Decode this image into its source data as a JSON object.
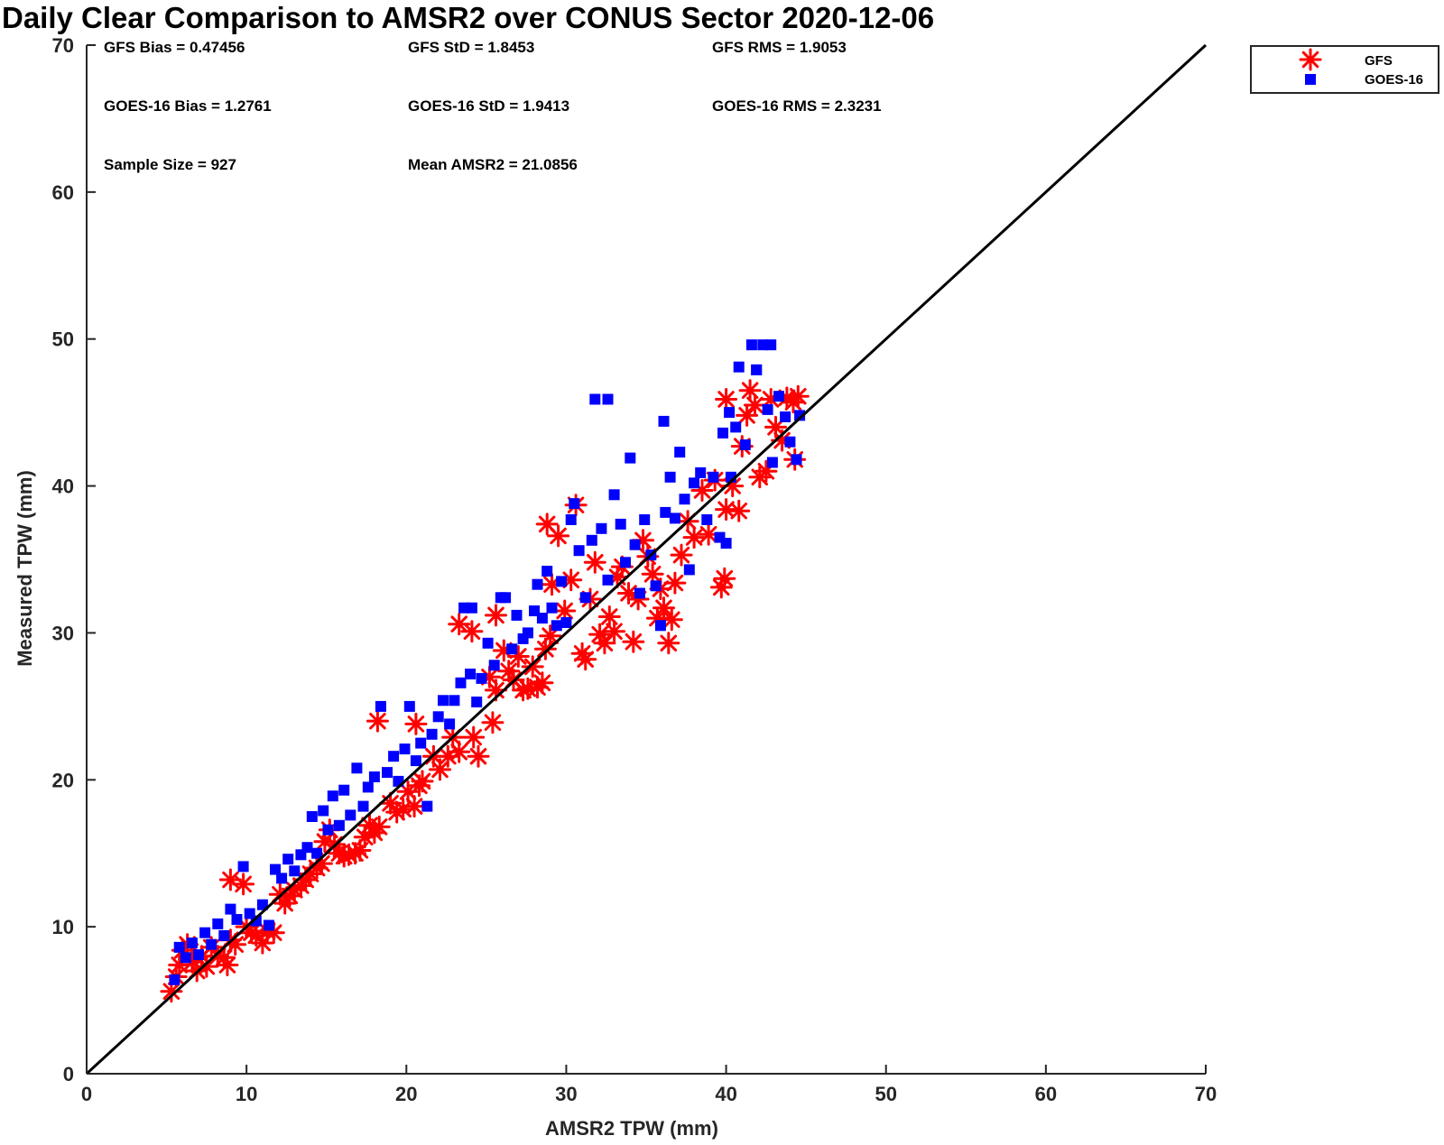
{
  "chart_data": {
    "type": "scatter",
    "title": "Daily Clear Comparison to AMSR2 over CONUS Sector 2020-12-06",
    "xlabel": "AMSR2 TPW (mm)",
    "ylabel": "Measured TPW (mm)",
    "xlim": [
      0,
      70
    ],
    "ylim": [
      0,
      70
    ],
    "xticks": [
      "0",
      "10",
      "20",
      "30",
      "40",
      "50",
      "60",
      "70"
    ],
    "yticks": [
      "0",
      "10",
      "20",
      "30",
      "40",
      "50",
      "60",
      "70"
    ],
    "grid": false,
    "legend_position": "outside-top-right",
    "reference_line": {
      "type": "one-to-one",
      "color": "#000000"
    },
    "annotations": [
      {
        "row": 0,
        "col": 0,
        "text": "GFS Bias = 0.47456"
      },
      {
        "row": 0,
        "col": 1,
        "text": "GFS StD = 1.8453"
      },
      {
        "row": 0,
        "col": 2,
        "text": "GFS RMS = 1.9053"
      },
      {
        "row": 1,
        "col": 0,
        "text": "GOES-16 Bias = 1.2761"
      },
      {
        "row": 1,
        "col": 1,
        "text": "GOES-16 StD = 1.9413"
      },
      {
        "row": 1,
        "col": 2,
        "text": "GOES-16 RMS = 2.3231"
      },
      {
        "row": 2,
        "col": 0,
        "text": "Sample Size = 927"
      },
      {
        "row": 2,
        "col": 1,
        "text": "Mean AMSR2 = 21.0856"
      }
    ],
    "series": [
      {
        "name": "GFS",
        "marker": "asterisk",
        "color": "#ff0000",
        "points": [
          [
            5.3,
            5.6
          ],
          [
            5.6,
            6.6
          ],
          [
            5.8,
            7.4
          ],
          [
            6.0,
            8.4
          ],
          [
            6.3,
            8.8
          ],
          [
            6.6,
            7.6
          ],
          [
            6.9,
            7.0
          ],
          [
            7.2,
            8.0
          ],
          [
            7.5,
            7.3
          ],
          [
            7.8,
            8.6
          ],
          [
            8.2,
            8.0
          ],
          [
            8.6,
            7.9
          ],
          [
            8.8,
            7.4
          ],
          [
            9.0,
            9.1
          ],
          [
            9.3,
            8.8
          ],
          [
            9.0,
            13.2
          ],
          [
            9.8,
            12.9
          ],
          [
            10.0,
            10.0
          ],
          [
            10.3,
            9.6
          ],
          [
            10.6,
            9.4
          ],
          [
            11.0,
            8.9
          ],
          [
            11.3,
            9.7
          ],
          [
            11.7,
            9.6
          ],
          [
            12.1,
            12.2
          ],
          [
            12.4,
            11.6
          ],
          [
            12.7,
            12.1
          ],
          [
            13.0,
            12.5
          ],
          [
            13.4,
            12.8
          ],
          [
            13.7,
            13.2
          ],
          [
            14.0,
            13.6
          ],
          [
            14.4,
            14.0
          ],
          [
            14.7,
            14.3
          ],
          [
            14.9,
            15.8
          ],
          [
            15.2,
            16.6
          ],
          [
            15.5,
            15.6
          ],
          [
            15.8,
            15.0
          ],
          [
            16.1,
            14.8
          ],
          [
            16.4,
            14.9
          ],
          [
            16.8,
            15.0
          ],
          [
            17.1,
            15.2
          ],
          [
            17.4,
            16.1
          ],
          [
            17.7,
            16.9
          ],
          [
            18.0,
            16.4
          ],
          [
            18.3,
            16.8
          ],
          [
            18.2,
            24.0
          ],
          [
            19.0,
            18.4
          ],
          [
            19.4,
            17.8
          ],
          [
            19.8,
            18.0
          ],
          [
            20.1,
            19.2
          ],
          [
            20.5,
            18.2
          ],
          [
            20.8,
            19.6
          ],
          [
            21.0,
            19.9
          ],
          [
            20.6,
            23.8
          ],
          [
            21.7,
            21.6
          ],
          [
            22.1,
            20.7
          ],
          [
            22.6,
            21.6
          ],
          [
            22.9,
            22.9
          ],
          [
            23.3,
            21.9
          ],
          [
            24.2,
            22.9
          ],
          [
            24.5,
            21.6
          ],
          [
            23.3,
            30.6
          ],
          [
            24.1,
            30.1
          ],
          [
            25.2,
            27.0
          ],
          [
            25.4,
            23.9
          ],
          [
            25.6,
            26.1
          ],
          [
            25.6,
            31.2
          ],
          [
            26.1,
            28.8
          ],
          [
            26.4,
            27.4
          ],
          [
            26.7,
            26.8
          ],
          [
            27.0,
            28.4
          ],
          [
            27.3,
            26.1
          ],
          [
            27.6,
            26.2
          ],
          [
            27.9,
            27.7
          ],
          [
            28.2,
            26.3
          ],
          [
            28.5,
            26.6
          ],
          [
            28.7,
            28.9
          ],
          [
            29.0,
            29.8
          ],
          [
            29.1,
            33.3
          ],
          [
            28.8,
            37.4
          ],
          [
            29.5,
            36.6
          ],
          [
            29.9,
            31.5
          ],
          [
            30.3,
            33.6
          ],
          [
            30.6,
            38.7
          ],
          [
            31.0,
            28.6
          ],
          [
            31.2,
            28.2
          ],
          [
            31.5,
            32.3
          ],
          [
            31.8,
            34.8
          ],
          [
            32.1,
            29.9
          ],
          [
            32.4,
            29.3
          ],
          [
            32.7,
            31.1
          ],
          [
            33.0,
            30.1
          ],
          [
            33.2,
            33.8
          ],
          [
            33.5,
            34.5
          ],
          [
            33.9,
            32.7
          ],
          [
            34.2,
            29.4
          ],
          [
            34.5,
            32.3
          ],
          [
            34.8,
            36.3
          ],
          [
            35.1,
            35.2
          ],
          [
            35.4,
            34.0
          ],
          [
            35.7,
            31.0
          ],
          [
            35.9,
            33.0
          ],
          [
            36.1,
            31.7
          ],
          [
            36.4,
            29.3
          ],
          [
            36.6,
            30.9
          ],
          [
            36.8,
            33.4
          ],
          [
            37.2,
            35.3
          ],
          [
            37.6,
            37.6
          ],
          [
            38.0,
            36.5
          ],
          [
            38.5,
            39.7
          ],
          [
            38.9,
            36.7
          ],
          [
            39.3,
            40.4
          ],
          [
            39.7,
            33.1
          ],
          [
            39.9,
            33.7
          ],
          [
            40.0,
            38.4
          ],
          [
            40.4,
            40.0
          ],
          [
            40.8,
            38.3
          ],
          [
            41.0,
            42.7
          ],
          [
            41.5,
            46.5
          ],
          [
            41.8,
            45.5
          ],
          [
            42.1,
            40.6
          ],
          [
            42.5,
            41.0
          ],
          [
            42.8,
            45.9
          ],
          [
            43.1,
            44.0
          ],
          [
            43.5,
            43.1
          ],
          [
            43.8,
            46.0
          ],
          [
            44.2,
            45.7
          ],
          [
            44.5,
            46.1
          ],
          [
            44.3,
            41.8
          ],
          [
            40.0,
            45.9
          ],
          [
            41.3,
            44.8
          ]
        ]
      },
      {
        "name": "GOES-16",
        "marker": "square",
        "color": "#0000ff",
        "points": [
          [
            5.5,
            6.4
          ],
          [
            5.8,
            8.6
          ],
          [
            6.2,
            7.9
          ],
          [
            6.6,
            8.9
          ],
          [
            7.0,
            8.1
          ],
          [
            7.4,
            9.6
          ],
          [
            7.8,
            8.8
          ],
          [
            8.2,
            10.2
          ],
          [
            8.6,
            9.4
          ],
          [
            9.0,
            11.2
          ],
          [
            9.4,
            10.5
          ],
          [
            9.8,
            14.1
          ],
          [
            10.2,
            10.9
          ],
          [
            10.6,
            10.4
          ],
          [
            11.0,
            11.5
          ],
          [
            11.4,
            10.1
          ],
          [
            11.8,
            13.9
          ],
          [
            12.2,
            13.3
          ],
          [
            12.6,
            14.6
          ],
          [
            13.0,
            13.8
          ],
          [
            13.4,
            14.9
          ],
          [
            13.8,
            15.4
          ],
          [
            14.1,
            17.5
          ],
          [
            14.4,
            15.0
          ],
          [
            14.8,
            17.9
          ],
          [
            15.1,
            16.6
          ],
          [
            15.4,
            18.9
          ],
          [
            15.8,
            16.9
          ],
          [
            16.1,
            19.3
          ],
          [
            16.5,
            17.6
          ],
          [
            16.9,
            20.8
          ],
          [
            17.3,
            18.2
          ],
          [
            17.6,
            19.5
          ],
          [
            18.0,
            20.2
          ],
          [
            18.4,
            25.0
          ],
          [
            18.8,
            20.5
          ],
          [
            19.2,
            21.6
          ],
          [
            19.5,
            19.9
          ],
          [
            19.9,
            22.1
          ],
          [
            20.2,
            25.0
          ],
          [
            20.6,
            21.3
          ],
          [
            20.9,
            22.5
          ],
          [
            21.3,
            18.2
          ],
          [
            21.6,
            23.1
          ],
          [
            22.0,
            24.3
          ],
          [
            22.3,
            25.4
          ],
          [
            22.7,
            23.8
          ],
          [
            23.0,
            25.4
          ],
          [
            23.4,
            26.6
          ],
          [
            23.6,
            31.7
          ],
          [
            24.1,
            31.7
          ],
          [
            24.0,
            27.2
          ],
          [
            24.4,
            25.3
          ],
          [
            24.7,
            26.9
          ],
          [
            25.1,
            29.3
          ],
          [
            25.5,
            27.8
          ],
          [
            25.9,
            32.4
          ],
          [
            26.2,
            32.4
          ],
          [
            26.6,
            28.9
          ],
          [
            26.9,
            31.2
          ],
          [
            27.3,
            29.6
          ],
          [
            27.6,
            30.0
          ],
          [
            28.0,
            31.5
          ],
          [
            28.2,
            33.3
          ],
          [
            28.5,
            31.0
          ],
          [
            28.8,
            34.2
          ],
          [
            29.1,
            31.7
          ],
          [
            29.4,
            30.5
          ],
          [
            29.7,
            33.5
          ],
          [
            30.0,
            30.7
          ],
          [
            30.3,
            37.7
          ],
          [
            30.5,
            38.8
          ],
          [
            30.8,
            35.6
          ],
          [
            31.2,
            32.4
          ],
          [
            31.6,
            36.3
          ],
          [
            31.8,
            45.9
          ],
          [
            32.6,
            45.9
          ],
          [
            32.2,
            37.1
          ],
          [
            32.6,
            33.6
          ],
          [
            33.0,
            39.4
          ],
          [
            33.4,
            37.4
          ],
          [
            33.7,
            34.8
          ],
          [
            34.0,
            41.9
          ],
          [
            34.3,
            36.0
          ],
          [
            34.6,
            32.7
          ],
          [
            34.9,
            37.7
          ],
          [
            35.3,
            35.3
          ],
          [
            35.6,
            33.2
          ],
          [
            35.9,
            30.5
          ],
          [
            36.1,
            44.4
          ],
          [
            36.2,
            38.2
          ],
          [
            36.5,
            40.6
          ],
          [
            36.8,
            37.8
          ],
          [
            37.1,
            42.3
          ],
          [
            37.4,
            39.1
          ],
          [
            37.7,
            34.3
          ],
          [
            38.0,
            40.2
          ],
          [
            38.4,
            40.9
          ],
          [
            38.8,
            37.7
          ],
          [
            39.2,
            40.6
          ],
          [
            39.6,
            36.5
          ],
          [
            40.0,
            36.1
          ],
          [
            40.3,
            40.6
          ],
          [
            40.6,
            44.0
          ],
          [
            40.8,
            48.1
          ],
          [
            41.2,
            42.8
          ],
          [
            41.6,
            49.6
          ],
          [
            41.9,
            47.9
          ],
          [
            42.3,
            49.6
          ],
          [
            42.6,
            45.2
          ],
          [
            42.9,
            41.6
          ],
          [
            43.3,
            46.1
          ],
          [
            43.7,
            44.7
          ],
          [
            44.0,
            43.0
          ],
          [
            44.4,
            41.8
          ],
          [
            44.6,
            44.8
          ],
          [
            39.8,
            43.6
          ],
          [
            40.2,
            45.0
          ],
          [
            42.8,
            49.6
          ],
          [
            41.9,
            47.9
          ]
        ]
      }
    ]
  }
}
